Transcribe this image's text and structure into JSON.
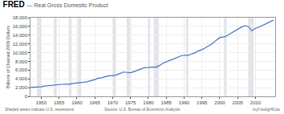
{
  "chart_data": {
    "type": "line",
    "title": "FRED",
    "subtitle": "— Real Gross Domestic Product",
    "ylabel": "Billions of Chained 2009 Dollars",
    "annotations": [
      "Shaded areas indicate U.S. recessions",
      "Source: U.S. Bureau of Economic Analysis",
      "myf.red/g/4Cas"
    ],
    "x": [
      1947,
      1948,
      1949,
      1950,
      1951,
      1952,
      1953,
      1954,
      1955,
      1956,
      1957,
      1958,
      1959,
      1960,
      1961,
      1962,
      1963,
      1964,
      1965,
      1966,
      1967,
      1968,
      1969,
      1970,
      1971,
      1972,
      1973,
      1974,
      1975,
      1976,
      1977,
      1978,
      1979,
      1980,
      1981,
      1982,
      1983,
      1984,
      1985,
      1986,
      1987,
      1988,
      1989,
      1990,
      1991,
      1992,
      1993,
      1994,
      1995,
      1996,
      1997,
      1998,
      1999,
      2000,
      2001,
      2002,
      2003,
      2004,
      2005,
      2006,
      2007,
      2008,
      2009,
      2010,
      2011,
      2012,
      2013,
      2014,
      2015
    ],
    "values": [
      2033,
      2073,
      2056,
      2184,
      2360,
      2456,
      2571,
      2556,
      2702,
      2752,
      2805,
      2772,
      2959,
      3015,
      3072,
      3243,
      3375,
      3574,
      3828,
      4146,
      4259,
      4534,
      4712,
      4722,
      4882,
      5215,
      5558,
      5467,
      5385,
      5675,
      5960,
      6349,
      6591,
      6568,
      6736,
      6630,
      6998,
      7535,
      7951,
      8233,
      8523,
      8910,
      9237,
      9414,
      9343,
      9645,
      9935,
      10392,
      10672,
      11103,
      11629,
      12124,
      12827,
      13463,
      13558,
      13861,
      14371,
      14900,
      15325,
      15820,
      16155,
      15982,
      14964,
      15563,
      15840,
      16245,
      16588,
      17025,
      17419
    ],
    "color": "#4472C4",
    "recessions": [
      [
        1948.83,
        1949.92
      ],
      [
        1953.5,
        1954.33
      ],
      [
        1957.75,
        1958.5
      ],
      [
        1960.25,
        1961.17
      ],
      [
        1969.92,
        1970.92
      ],
      [
        1973.92,
        1975.17
      ],
      [
        1980.0,
        1980.5
      ],
      [
        1981.5,
        1982.92
      ],
      [
        1990.5,
        1991.17
      ],
      [
        2001.17,
        2001.92
      ],
      [
        2007.92,
        2009.5
      ]
    ],
    "xlim": [
      1947.0,
      2015.5
    ],
    "ylim": [
      0,
      18000
    ],
    "xticks": [
      1950,
      1955,
      1960,
      1965,
      1970,
      1975,
      1980,
      1985,
      1990,
      1995,
      2000,
      2005,
      2010
    ],
    "yticks": [
      0,
      {
        "value": 2000,
        "label": "2,000"
      },
      {
        "value": 4000,
        "label": "4,000"
      },
      {
        "value": 6000,
        "label": "6,000"
      },
      {
        "value": 8000,
        "label": "8,000"
      },
      {
        "value": 10000,
        "label": "10,000"
      },
      {
        "value": 12000,
        "label": "12,000"
      },
      {
        "value": 14000,
        "label": "14,000"
      },
      {
        "value": 16000,
        "label": "16,000"
      },
      {
        "value": 18000,
        "label": "18,000"
      }
    ],
    "grid": true
  }
}
